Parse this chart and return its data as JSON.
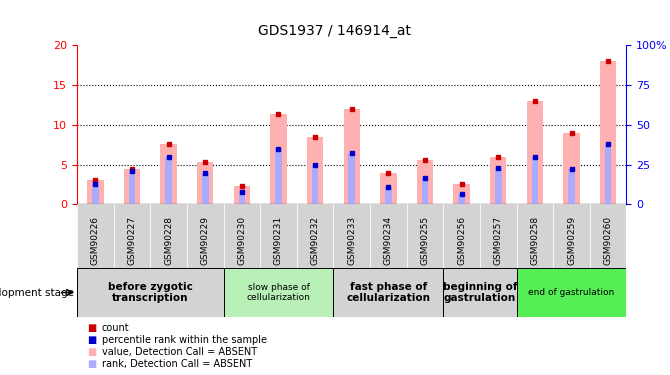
{
  "title": "GDS1937 / 146914_at",
  "samples": [
    "GSM90226",
    "GSM90227",
    "GSM90228",
    "GSM90229",
    "GSM90230",
    "GSM90231",
    "GSM90232",
    "GSM90233",
    "GSM90234",
    "GSM90255",
    "GSM90256",
    "GSM90257",
    "GSM90258",
    "GSM90259",
    "GSM90260"
  ],
  "pink_values": [
    3.1,
    4.5,
    7.6,
    5.3,
    2.3,
    11.3,
    8.5,
    12.0,
    3.9,
    5.6,
    2.6,
    6.0,
    13.0,
    9.0,
    18.0
  ],
  "blue_values": [
    2.6,
    4.2,
    5.9,
    3.9,
    1.5,
    7.0,
    5.0,
    6.4,
    2.2,
    3.3,
    1.3,
    4.6,
    6.0,
    4.4,
    7.6
  ],
  "ylim_left": [
    0,
    20
  ],
  "ylim_right": [
    0,
    100
  ],
  "yticks_left": [
    0,
    5,
    10,
    15,
    20
  ],
  "yticks_right": [
    0,
    25,
    50,
    75,
    100
  ],
  "ytick_labels_right": [
    "0",
    "25",
    "50",
    "75",
    "100%"
  ],
  "stage_groups": [
    {
      "label": "before zygotic\ntranscription",
      "count": 4,
      "color": "#d3d3d3",
      "fontsize": 7.5,
      "bold": true
    },
    {
      "label": "slow phase of\ncellularization",
      "count": 3,
      "color": "#b8f0b8",
      "fontsize": 6.5,
      "bold": false
    },
    {
      "label": "fast phase of\ncellularization",
      "count": 3,
      "color": "#d3d3d3",
      "fontsize": 7.5,
      "bold": true
    },
    {
      "label": "beginning of\ngastrulation",
      "count": 2,
      "color": "#d3d3d3",
      "fontsize": 7.5,
      "bold": true
    },
    {
      "label": "end of gastrulation",
      "count": 3,
      "color": "#55ee55",
      "fontsize": 6.5,
      "bold": false
    }
  ],
  "pink_color": "#ffb0b0",
  "blue_color": "#aaaaff",
  "red_color": "#cc0000",
  "darkblue_color": "#0000cc",
  "background_color": "white",
  "label_bg_color": "#d3d3d3",
  "dev_stage_arrow_label": "development stage"
}
